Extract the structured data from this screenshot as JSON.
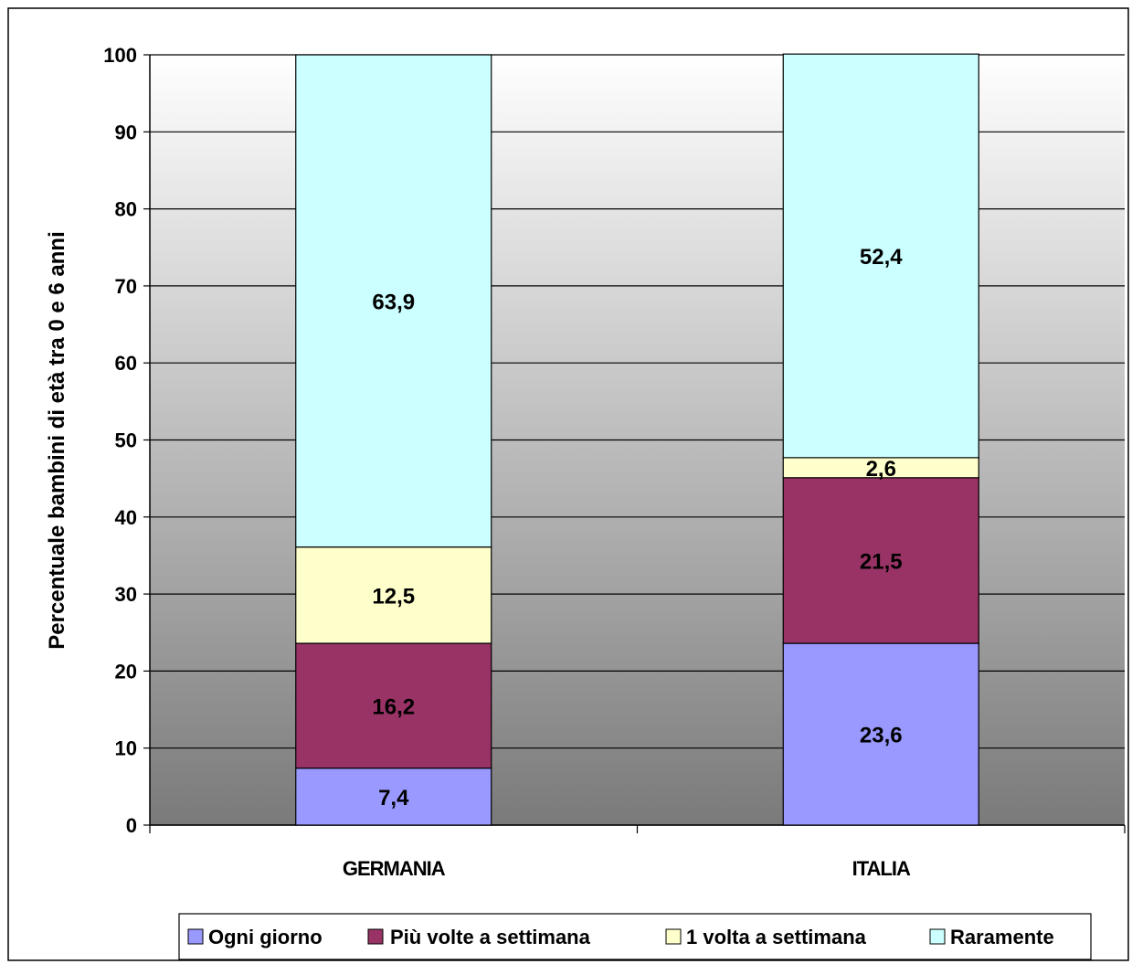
{
  "chart_data": {
    "type": "bar",
    "stacked": true,
    "title": "",
    "xlabel": "",
    "ylabel": "Percentuale bambini di età tra 0 e 6 anni",
    "ylim": [
      0,
      100
    ],
    "yticks": [
      0,
      10,
      20,
      30,
      40,
      50,
      60,
      70,
      80,
      90,
      100
    ],
    "grid": true,
    "legend_position": "bottom",
    "categories": [
      "GERMANIA",
      "ITALIA"
    ],
    "series": [
      {
        "name": "Ogni giorno",
        "color": "#9999ff",
        "values": [
          7.4,
          23.6
        ],
        "labels": [
          "7,4",
          "23,6"
        ]
      },
      {
        "name": "Più volte a settimana",
        "color": "#993366",
        "values": [
          16.2,
          21.5
        ],
        "labels": [
          "16,2",
          "21,5"
        ]
      },
      {
        "name": "1 volta a settimana",
        "color": "#ffffcc",
        "values": [
          12.5,
          2.6
        ],
        "labels": [
          "12,5",
          "2,6"
        ]
      },
      {
        "name": "Raramente",
        "color": "#ccffff",
        "values": [
          63.9,
          52.4
        ],
        "labels": [
          "63,9",
          "52,4"
        ]
      }
    ]
  }
}
